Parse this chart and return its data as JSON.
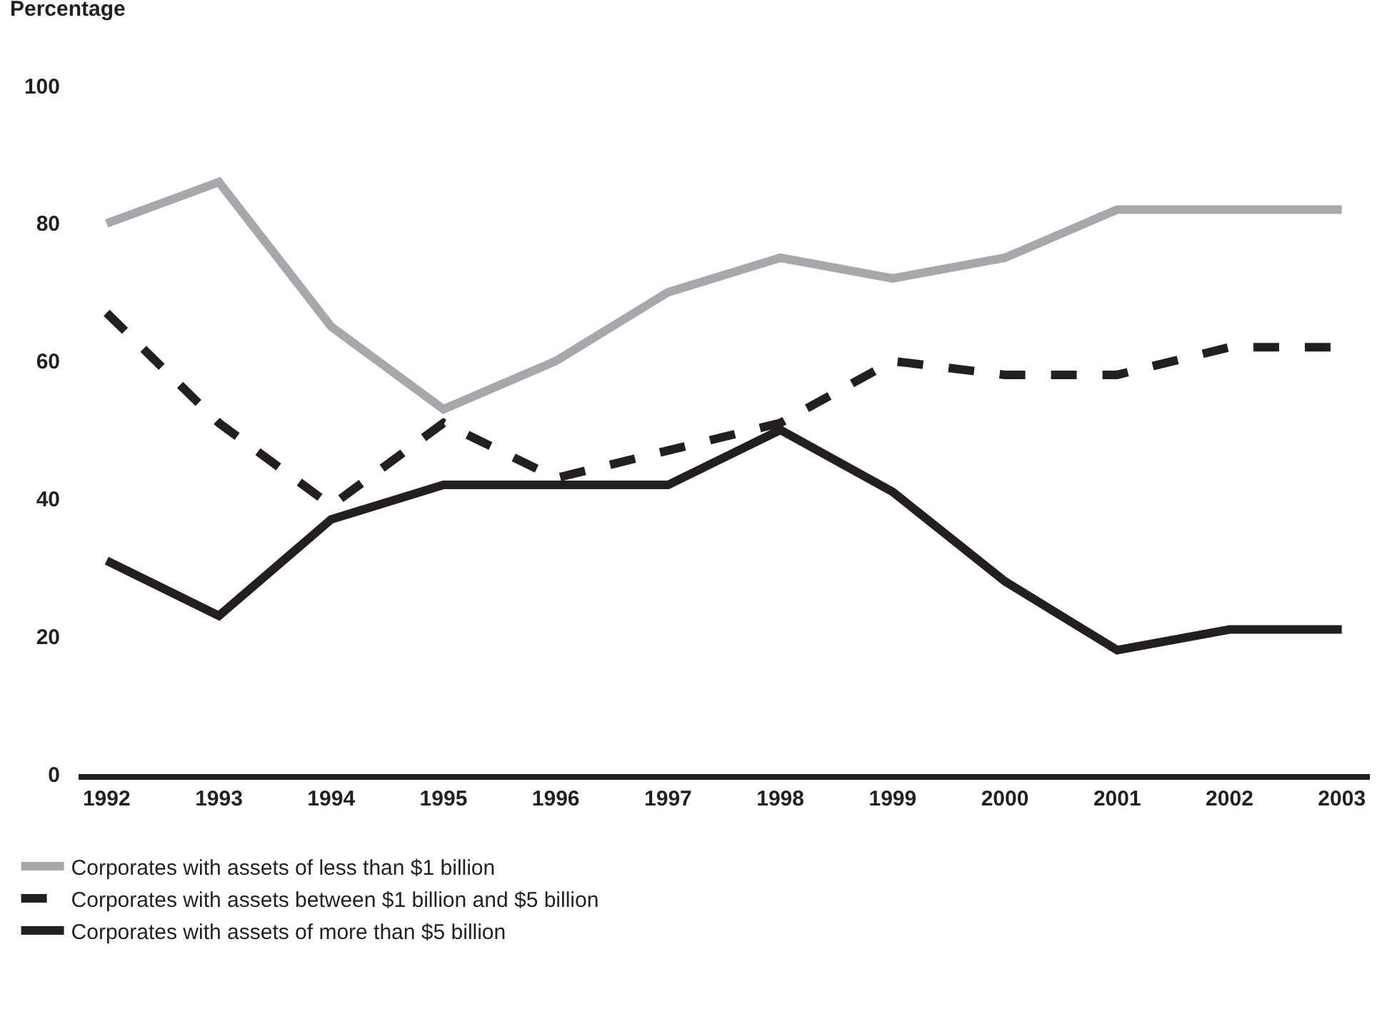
{
  "chart_data": {
    "type": "line",
    "ylabel": "Percentage",
    "categories": [
      "1992",
      "1993",
      "1994",
      "1995",
      "1996",
      "1997",
      "1998",
      "1999",
      "2000",
      "2001",
      "2002",
      "2003"
    ],
    "series": [
      {
        "name": "Corporates with assets of less than $1 billion",
        "color": "#a6a8ab",
        "line_style": "solid",
        "values": [
          80,
          86,
          65,
          53,
          60,
          70,
          75,
          72,
          75,
          82,
          82,
          82
        ]
      },
      {
        "name": "Corporates with assets between $1 billion and $5 billion",
        "color": "#231f20",
        "line_style": "dashed",
        "values": [
          67,
          51,
          39,
          51,
          43,
          47,
          51,
          60,
          58,
          58,
          62,
          62
        ]
      },
      {
        "name": "Corporates with assets of more than $5 billion",
        "color": "#231f20",
        "line_style": "solid",
        "values": [
          31,
          23,
          37,
          42,
          42,
          42,
          50,
          41,
          28,
          18,
          21,
          21
        ]
      }
    ],
    "ylim": [
      0,
      100
    ],
    "yticks": [
      0,
      20,
      40,
      60,
      80,
      100
    ],
    "grid": false,
    "legend": "bottom",
    "marker": "none"
  }
}
